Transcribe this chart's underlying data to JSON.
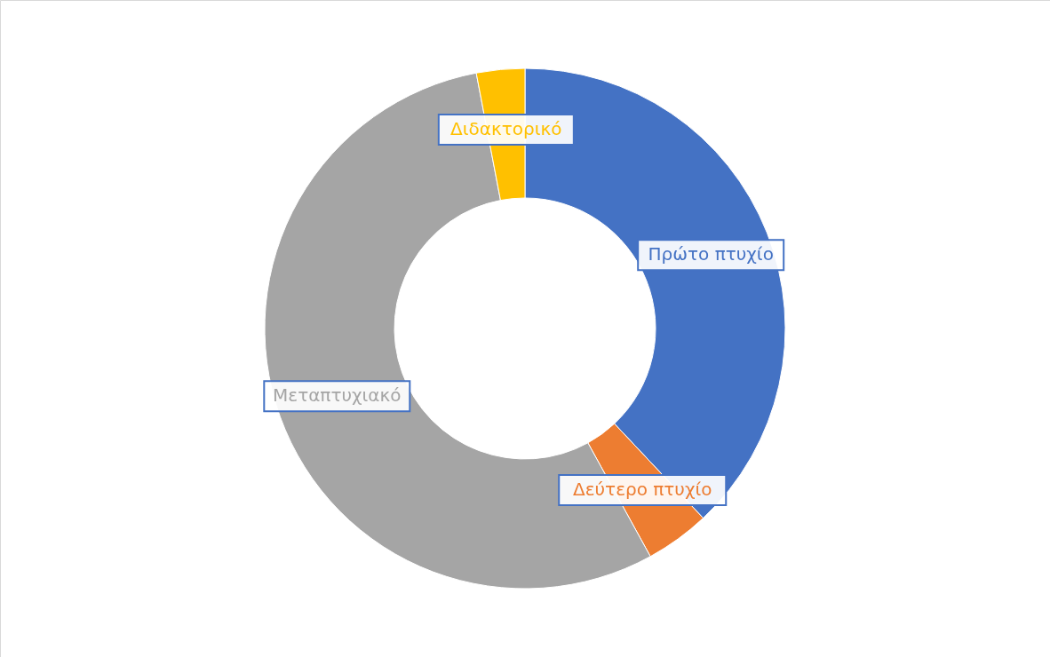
{
  "chart_data": {
    "type": "donut",
    "categories": [
      "Πρώτο πτυχίο",
      "Δεύτερο πτυχίο",
      "Μεταπτυχιακό",
      "Διδακτορικό"
    ],
    "values": [
      38,
      4,
      55,
      3
    ],
    "colors": [
      "#4472c4",
      "#ed7d31",
      "#a5a5a5",
      "#ffc000"
    ]
  }
}
